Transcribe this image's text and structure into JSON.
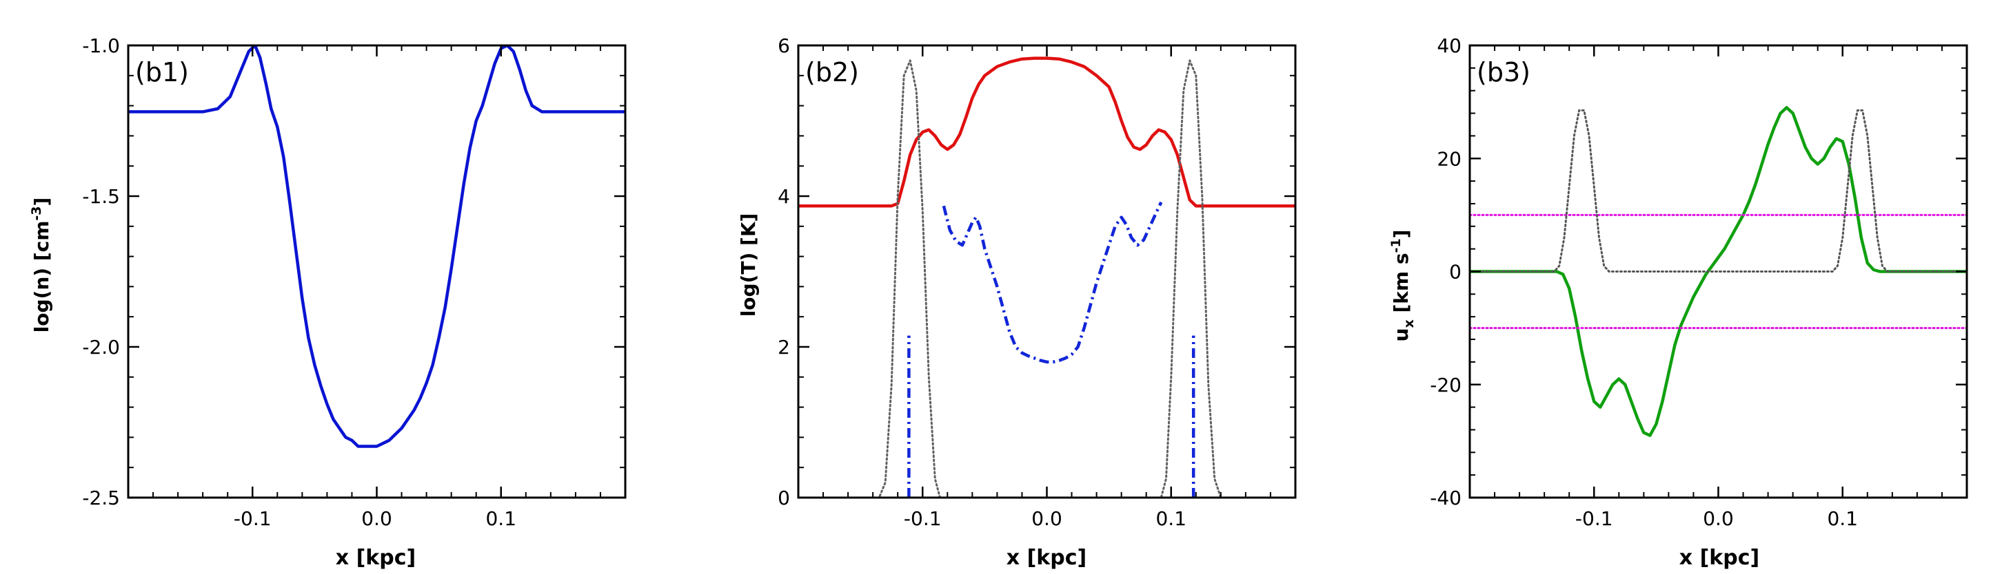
{
  "chart_data": [
    {
      "type": "line",
      "panel_label": "(b1)",
      "xlabel": "x [kpc]",
      "ylabel_parts": [
        "log(n) [cm",
        "-3",
        "]"
      ],
      "xlim": [
        -0.2,
        0.2
      ],
      "ylim": [
        -2.5,
        -1.0
      ],
      "xticks": [
        -0.1,
        0.0,
        0.1
      ],
      "xtick_labels": [
        "-0.1",
        "0.0",
        "0.1"
      ],
      "yticks": [
        -2.5,
        -2.0,
        -1.5,
        -1.0
      ],
      "ytick_labels": [
        "-2.5",
        "-2.0",
        "-1.5",
        "-1.0"
      ],
      "series": [
        {
          "name": "log(n)",
          "color": "#0a14d2",
          "style": "solid",
          "x": [
            -0.2,
            -0.14,
            -0.128,
            -0.118,
            -0.11,
            -0.103,
            -0.098,
            -0.094,
            -0.089,
            -0.085,
            -0.08,
            -0.075,
            -0.07,
            -0.065,
            -0.06,
            -0.055,
            -0.05,
            -0.045,
            -0.04,
            -0.035,
            -0.03,
            -0.025,
            -0.02,
            -0.015,
            -0.01,
            -0.005,
            0.0,
            0.005,
            0.01,
            0.015,
            0.02,
            0.025,
            0.03,
            0.035,
            0.04,
            0.045,
            0.05,
            0.055,
            0.06,
            0.065,
            0.07,
            0.075,
            0.08,
            0.085,
            0.09,
            0.095,
            0.1,
            0.105,
            0.11,
            0.115,
            0.12,
            0.125,
            0.133,
            0.14,
            0.2
          ],
          "values": [
            -1.22,
            -1.22,
            -1.21,
            -1.17,
            -1.09,
            -1.02,
            -1.0,
            -1.04,
            -1.13,
            -1.21,
            -1.27,
            -1.37,
            -1.52,
            -1.68,
            -1.84,
            -1.97,
            -2.06,
            -2.13,
            -2.19,
            -2.24,
            -2.27,
            -2.3,
            -2.31,
            -2.33,
            -2.33,
            -2.33,
            -2.33,
            -2.32,
            -2.31,
            -2.29,
            -2.27,
            -2.24,
            -2.21,
            -2.17,
            -2.12,
            -2.06,
            -1.97,
            -1.87,
            -1.74,
            -1.6,
            -1.46,
            -1.34,
            -1.25,
            -1.2,
            -1.13,
            -1.06,
            -1.01,
            -1.0,
            -1.02,
            -1.08,
            -1.15,
            -1.2,
            -1.22,
            -1.22,
            -1.22
          ]
        }
      ]
    },
    {
      "type": "line",
      "panel_label": "(b2)",
      "xlabel": "x [kpc]",
      "ylabel_parts": [
        "log(T) [K]",
        "",
        ""
      ],
      "xlim": [
        -0.2,
        0.2
      ],
      "ylim": [
        0,
        6
      ],
      "xticks": [
        -0.1,
        0.0,
        0.1
      ],
      "xtick_labels": [
        "-0.1",
        "0.0",
        "0.1"
      ],
      "yticks": [
        0,
        2,
        4,
        6
      ],
      "ytick_labels": [
        "0",
        "2",
        "4",
        "6"
      ],
      "series": [
        {
          "name": "log(T)",
          "color": "#e01010",
          "style": "solid",
          "x": [
            -0.2,
            -0.125,
            -0.12,
            -0.115,
            -0.11,
            -0.105,
            -0.1,
            -0.095,
            -0.09,
            -0.085,
            -0.08,
            -0.075,
            -0.07,
            -0.065,
            -0.06,
            -0.055,
            -0.05,
            -0.04,
            -0.03,
            -0.02,
            -0.01,
            0.0,
            0.01,
            0.02,
            0.03,
            0.04,
            0.05,
            0.055,
            0.06,
            0.065,
            0.07,
            0.075,
            0.08,
            0.085,
            0.09,
            0.095,
            0.1,
            0.105,
            0.11,
            0.115,
            0.12,
            0.125,
            0.13,
            0.2
          ],
          "values": [
            3.87,
            3.87,
            3.9,
            4.2,
            4.55,
            4.75,
            4.85,
            4.88,
            4.8,
            4.68,
            4.62,
            4.68,
            4.82,
            5.05,
            5.3,
            5.48,
            5.6,
            5.72,
            5.78,
            5.82,
            5.83,
            5.83,
            5.82,
            5.78,
            5.72,
            5.6,
            5.45,
            5.25,
            5.0,
            4.78,
            4.65,
            4.62,
            4.68,
            4.8,
            4.88,
            4.85,
            4.75,
            4.55,
            4.25,
            3.95,
            3.87,
            3.87,
            3.87,
            3.87
          ]
        },
        {
          "name": "log(T) variant",
          "color": "#1226d8",
          "style": "dashdot",
          "x": [
            -0.083,
            -0.078,
            -0.073,
            -0.068,
            -0.064,
            -0.06,
            -0.057,
            -0.054,
            -0.05,
            -0.045,
            -0.04,
            -0.035,
            -0.03,
            -0.025,
            -0.02,
            -0.015,
            -0.01,
            -0.005,
            0.0,
            0.005,
            0.01,
            0.015,
            0.02,
            0.025,
            0.03,
            0.035,
            0.04,
            0.045,
            0.05,
            0.055,
            0.06,
            0.064,
            0.068,
            0.073,
            0.078,
            0.083,
            0.088,
            0.092
          ],
          "values": [
            3.87,
            3.55,
            3.4,
            3.35,
            3.5,
            3.65,
            3.72,
            3.6,
            3.3,
            3.05,
            2.8,
            2.5,
            2.2,
            2.0,
            1.92,
            1.88,
            1.85,
            1.82,
            1.8,
            1.8,
            1.82,
            1.85,
            1.9,
            2.0,
            2.25,
            2.55,
            2.85,
            3.1,
            3.35,
            3.6,
            3.72,
            3.62,
            3.45,
            3.35,
            3.42,
            3.6,
            3.78,
            3.92
          ]
        },
        {
          "name": "left marker",
          "color": "#1226d8",
          "style": "dashdot",
          "x": [
            -0.111,
            -0.111
          ],
          "values": [
            0,
            2.15
          ]
        },
        {
          "name": "right marker",
          "color": "#1226d8",
          "style": "dashdot",
          "x": [
            0.118,
            0.118
          ],
          "values": [
            0,
            2.15
          ]
        },
        {
          "name": "reference",
          "color": "#606060",
          "style": "dotted",
          "x": [
            -0.2,
            -0.135,
            -0.13,
            -0.125,
            -0.12,
            -0.115,
            -0.11,
            -0.105,
            -0.1,
            -0.095,
            -0.09,
            -0.086,
            0.092,
            0.096,
            0.1,
            0.105,
            0.11,
            0.115,
            0.12,
            0.125,
            0.13,
            0.135,
            0.14,
            0.2
          ],
          "values": [
            0,
            0,
            0.2,
            1.5,
            4.0,
            5.6,
            5.8,
            5.4,
            3.8,
            1.6,
            0.25,
            0,
            0,
            0.25,
            1.6,
            3.8,
            5.4,
            5.8,
            5.6,
            4.0,
            1.5,
            0.25,
            0,
            0
          ]
        }
      ]
    },
    {
      "type": "line",
      "panel_label": "(b3)",
      "xlabel": "x [kpc]",
      "ylabel_parts": [
        "u",
        "x",
        " [km s",
        "-1",
        "]"
      ],
      "xlim": [
        -0.2,
        0.2
      ],
      "ylim": [
        -40,
        40
      ],
      "xticks": [
        -0.1,
        0.0,
        0.1
      ],
      "xtick_labels": [
        "-0.1",
        "0.0",
        "0.1"
      ],
      "yticks": [
        -40,
        -20,
        0,
        20,
        40
      ],
      "ytick_labels": [
        "-40",
        "-20",
        "0",
        "20",
        "40"
      ],
      "series": [
        {
          "name": "u_x",
          "color": "#10a010",
          "style": "solid",
          "x": [
            -0.2,
            -0.13,
            -0.125,
            -0.12,
            -0.115,
            -0.11,
            -0.105,
            -0.1,
            -0.095,
            -0.09,
            -0.085,
            -0.08,
            -0.075,
            -0.07,
            -0.065,
            -0.06,
            -0.055,
            -0.05,
            -0.045,
            -0.04,
            -0.035,
            -0.03,
            -0.025,
            -0.02,
            -0.015,
            -0.01,
            -0.005,
            0.0,
            0.005,
            0.01,
            0.015,
            0.02,
            0.025,
            0.03,
            0.035,
            0.04,
            0.045,
            0.05,
            0.055,
            0.06,
            0.065,
            0.07,
            0.075,
            0.08,
            0.085,
            0.09,
            0.095,
            0.1,
            0.105,
            0.11,
            0.115,
            0.12,
            0.125,
            0.13,
            0.135,
            0.14,
            0.2
          ],
          "values": [
            0,
            0,
            -0.5,
            -3,
            -8,
            -14,
            -19,
            -23,
            -24,
            -22,
            -20,
            -19,
            -20,
            -23,
            -26,
            -28.5,
            -29,
            -27,
            -23,
            -18,
            -13,
            -9.5,
            -7,
            -4.5,
            -2.5,
            -0.5,
            1,
            2.5,
            4,
            6,
            8,
            10,
            12.5,
            15.5,
            19,
            22.5,
            25.5,
            28,
            29,
            28,
            25,
            22,
            20,
            19,
            20,
            22,
            23.5,
            23,
            19,
            13,
            6,
            1.5,
            0.3,
            0,
            0,
            0,
            0
          ]
        },
        {
          "name": "+10 level",
          "color": "#e010e0",
          "style": "dotted",
          "x": [
            -0.2,
            0.2
          ],
          "values": [
            10,
            10
          ]
        },
        {
          "name": "-10 level",
          "color": "#e010e0",
          "style": "dotted",
          "x": [
            -0.2,
            0.2
          ],
          "values": [
            -10,
            -10
          ]
        },
        {
          "name": "reference",
          "color": "#555555",
          "style": "dotted",
          "x": [
            -0.2,
            -0.132,
            -0.128,
            -0.124,
            -0.12,
            -0.116,
            -0.112,
            -0.108,
            -0.104,
            -0.1,
            -0.096,
            -0.092,
            -0.088,
            0.092,
            0.096,
            0.1,
            0.104,
            0.108,
            0.112,
            0.116,
            0.12,
            0.124,
            0.128,
            0.132,
            0.136,
            0.2
          ],
          "values": [
            0,
            0,
            1,
            6,
            15,
            24,
            28.5,
            28.5,
            24,
            15,
            6,
            1,
            0,
            0,
            1,
            6,
            15,
            24,
            28.5,
            28.5,
            24,
            15,
            6,
            1,
            0,
            0
          ]
        }
      ]
    }
  ]
}
